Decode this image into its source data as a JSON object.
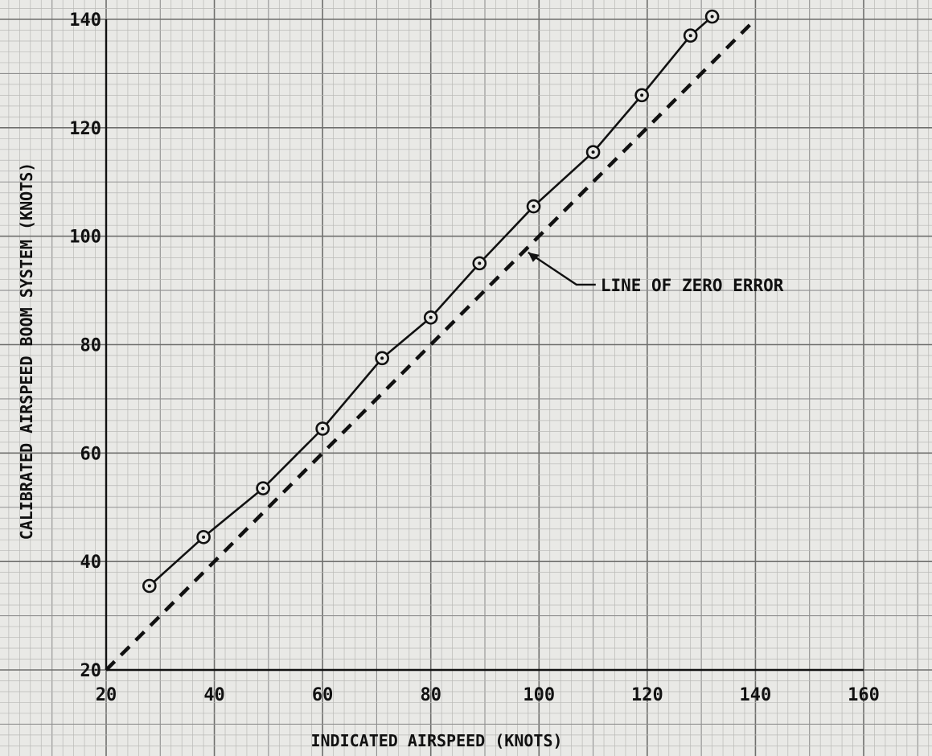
{
  "chart_data": {
    "type": "line",
    "xlabel": "INDICATED AIRSPEED (KNOTS)",
    "ylabel": "CALIBRATED AIRSPEED BOOM SYSTEM (KNOTS)",
    "xlim": [
      20,
      160
    ],
    "ylim": [
      20,
      140
    ],
    "x_ticks": [
      20,
      40,
      60,
      80,
      100,
      120,
      140,
      160
    ],
    "y_ticks": [
      20,
      40,
      60,
      80,
      100,
      120,
      140
    ],
    "x_tick_labels": [
      "20",
      "40",
      "60",
      "80",
      "100",
      "120",
      "140",
      "160"
    ],
    "y_tick_labels": [
      "20",
      "40",
      "60",
      "80",
      "100",
      "120",
      "140"
    ],
    "grid": true,
    "series": [
      {
        "style": "solid-with-circle-markers",
        "x": [
          28,
          38,
          49,
          60,
          71,
          80,
          89,
          99,
          110,
          119,
          128,
          132
        ],
        "y": [
          35.5,
          44.5,
          53.5,
          64.5,
          77.5,
          85,
          95,
          105.5,
          115.5,
          126,
          137,
          140.5
        ]
      },
      {
        "style": "dashed",
        "x": [
          20,
          140
        ],
        "y": [
          20,
          140
        ]
      }
    ],
    "annotations": [
      {
        "text": "LINE OF ZERO ERROR",
        "points_to": {
          "x": 98,
          "y": 97
        }
      }
    ]
  },
  "colors": {
    "background": "#e9e9e6",
    "grid_minor": "#b9b9b6",
    "grid_major": "#6f6f6d",
    "ink": "#111111"
  }
}
